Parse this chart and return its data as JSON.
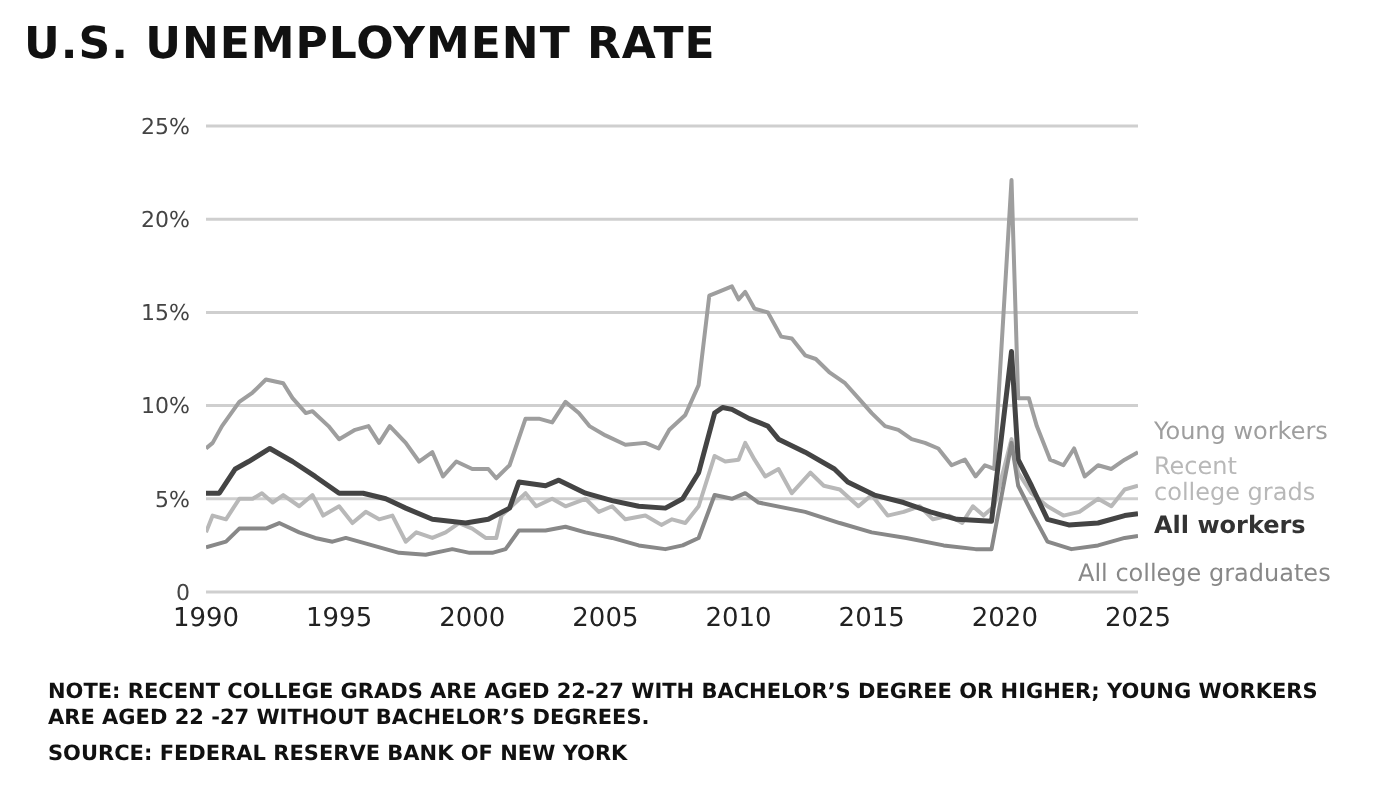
{
  "chart_data": {
    "type": "line",
    "title": "U.S. UNEMPLOYMENT RATE",
    "xlim": [
      1990,
      2025
    ],
    "xticks": [
      1990,
      1995,
      2000,
      2005,
      2010,
      2015,
      2020,
      2025
    ],
    "ylim": [
      0,
      25
    ],
    "yticks": [
      0,
      {
        "value": 5,
        "label": "5%"
      },
      {
        "value": 10,
        "label": "10%"
      },
      {
        "value": 15,
        "label": "15%"
      },
      {
        "value": 20,
        "label": "20%"
      },
      {
        "value": 25,
        "label": "25%"
      }
    ],
    "grid": "y",
    "series": [
      {
        "name": "Young workers",
        "color": "#9e9e9e",
        "x": [
          1990,
          1990.25,
          1990.6,
          1991.25,
          1991.75,
          1992.25,
          1992.9,
          1993.25,
          1993.75,
          1994,
          1994.6,
          1995,
          1995.6,
          1996.1,
          1996.5,
          1996.9,
          1997.5,
          1998,
          1998.5,
          1998.9,
          1999.4,
          2000,
          2000.6,
          2000.9,
          2001.4,
          2002,
          2002.5,
          2003,
          2003.5,
          2004,
          2004.4,
          2005,
          2005.75,
          2006.5,
          2007,
          2007.4,
          2008,
          2008.5,
          2008.9,
          2009.25,
          2009.75,
          2010,
          2010.25,
          2010.6,
          2011.1,
          2011.6,
          2012,
          2012.5,
          2012.9,
          2013.4,
          2014,
          2014.5,
          2015,
          2015.5,
          2016,
          2016.5,
          2017,
          2017.5,
          2018,
          2018.5,
          2018.9,
          2019.25,
          2019.6,
          2020.25,
          2020.5,
          2020.9,
          2021.2,
          2021.7,
          2022.2,
          2022.6,
          2023,
          2023.5,
          2024,
          2024.5,
          2025
        ],
        "values": [
          7.7,
          8.0,
          8.9,
          10.2,
          10.7,
          11.4,
          11.2,
          10.4,
          9.6,
          9.7,
          8.9,
          8.2,
          8.7,
          8.9,
          8.0,
          8.9,
          8.0,
          7.0,
          7.5,
          6.2,
          7.0,
          6.6,
          6.6,
          6.1,
          6.8,
          9.3,
          9.3,
          9.1,
          10.2,
          9.6,
          8.9,
          8.4,
          7.9,
          8.0,
          7.7,
          8.7,
          9.5,
          11.1,
          15.9,
          16.1,
          16.4,
          15.7,
          16.1,
          15.2,
          15.0,
          13.7,
          13.6,
          12.7,
          12.5,
          11.8,
          11.2,
          10.4,
          9.6,
          8.9,
          8.7,
          8.2,
          8.0,
          7.7,
          6.8,
          7.1,
          6.2,
          6.8,
          6.6,
          22.1,
          10.4,
          10.4,
          8.9,
          7.1,
          6.8,
          7.7,
          6.2,
          6.8,
          6.6,
          7.1,
          7.5
        ]
      },
      {
        "name": "Recent college grads",
        "color": "#b8b8b8",
        "x": [
          1990,
          1990.25,
          1990.75,
          1991.25,
          1991.75,
          1992.1,
          1992.5,
          1992.9,
          1993.5,
          1994,
          1994.4,
          1995,
          1995.5,
          1996,
          1996.5,
          1997,
          1997.5,
          1997.9,
          1998.5,
          1999,
          1999.5,
          2000,
          2000.5,
          2000.9,
          2001.1,
          2002,
          2002.4,
          2003,
          2003.5,
          2004.25,
          2004.75,
          2005.25,
          2005.75,
          2006.5,
          2007.1,
          2007.5,
          2008,
          2008.5,
          2009.1,
          2009.5,
          2010,
          2010.25,
          2010.6,
          2011,
          2011.5,
          2012,
          2012.7,
          2013.2,
          2013.8,
          2014.5,
          2015,
          2015.6,
          2016.2,
          2016.8,
          2017.3,
          2017.9,
          2018.4,
          2018.8,
          2019.2,
          2019.6,
          2020.25,
          2020.5,
          2021,
          2021.6,
          2022.2,
          2022.8,
          2023.5,
          2024,
          2024.5,
          2025
        ],
        "values": [
          3.2,
          4.1,
          3.9,
          5.0,
          5.0,
          5.3,
          4.8,
          5.2,
          4.6,
          5.2,
          4.1,
          4.6,
          3.7,
          4.3,
          3.9,
          4.1,
          2.7,
          3.2,
          2.9,
          3.2,
          3.7,
          3.4,
          2.9,
          2.9,
          4.1,
          5.3,
          4.6,
          5.0,
          4.6,
          5.0,
          4.3,
          4.6,
          3.9,
          4.1,
          3.6,
          3.9,
          3.7,
          4.6,
          7.3,
          7.0,
          7.1,
          8.0,
          7.1,
          6.2,
          6.6,
          5.3,
          6.4,
          5.7,
          5.5,
          4.6,
          5.2,
          4.1,
          4.3,
          4.6,
          3.9,
          4.1,
          3.7,
          4.6,
          4.1,
          4.6,
          8.2,
          6.4,
          5.3,
          4.6,
          4.1,
          4.3,
          5.0,
          4.6,
          5.5,
          5.7
        ]
      },
      {
        "name": "All workers",
        "color": "#444444",
        "x": [
          1990,
          1990.5,
          1991.1,
          1991.6,
          1992.4,
          1993.25,
          1994.1,
          1995,
          1995.9,
          1996.75,
          1997.5,
          1998.5,
          1999.75,
          2000.6,
          2001.4,
          2001.75,
          2002.75,
          2003.25,
          2004.25,
          2005.25,
          2006.25,
          2007.25,
          2007.9,
          2008.5,
          2009.1,
          2009.4,
          2009.75,
          2010.4,
          2011.1,
          2011.5,
          2012.5,
          2013.6,
          2014.1,
          2015.1,
          2016.2,
          2017.2,
          2018.2,
          2019.5,
          2020.25,
          2020.5,
          2021,
          2021.6,
          2022.4,
          2023.5,
          2024.5,
          2025
        ],
        "values": [
          5.3,
          5.3,
          6.6,
          7.0,
          7.7,
          7.0,
          6.2,
          5.3,
          5.3,
          5.0,
          4.5,
          3.9,
          3.7,
          3.9,
          4.5,
          5.9,
          5.7,
          6.0,
          5.3,
          4.9,
          4.6,
          4.5,
          5.0,
          6.4,
          9.6,
          9.9,
          9.8,
          9.3,
          8.9,
          8.2,
          7.5,
          6.6,
          5.9,
          5.2,
          4.8,
          4.3,
          3.9,
          3.8,
          12.9,
          7.1,
          5.7,
          3.9,
          3.6,
          3.7,
          4.1,
          4.2
        ]
      },
      {
        "name": "All college graduates",
        "color": "#888888",
        "x": [
          1990,
          1990.75,
          1991.25,
          1992.25,
          1992.75,
          1993.5,
          1994.1,
          1994.75,
          1995.25,
          1996.25,
          1997.25,
          1998.25,
          1999.25,
          1999.9,
          2000.75,
          2001.25,
          2001.75,
          2002.75,
          2003.5,
          2004.25,
          2005.25,
          2006.25,
          2007.25,
          2007.9,
          2008.5,
          2009.1,
          2009.75,
          2010.25,
          2010.75,
          2012.5,
          2013.8,
          2015,
          2016.3,
          2017.7,
          2018.9,
          2019.5,
          2020.25,
          2020.5,
          2021,
          2021.6,
          2022.5,
          2023.5,
          2024.5,
          2025
        ],
        "values": [
          2.4,
          2.7,
          3.4,
          3.4,
          3.7,
          3.2,
          2.9,
          2.7,
          2.9,
          2.5,
          2.1,
          2.0,
          2.3,
          2.1,
          2.1,
          2.3,
          3.3,
          3.3,
          3.5,
          3.2,
          2.9,
          2.5,
          2.3,
          2.5,
          2.9,
          5.2,
          5.0,
          5.3,
          4.8,
          4.3,
          3.7,
          3.2,
          2.9,
          2.5,
          2.3,
          2.3,
          8.0,
          5.7,
          4.3,
          2.7,
          2.3,
          2.5,
          2.9,
          3.0
        ]
      }
    ],
    "annotations": [
      "NOTE: RECENT COLLEGE GRADS ARE AGED 22-27 WITH BACHELOR’S DEGREE OR HIGHER; YOUNG WORKERS ARE AGED 22 -27 WITHOUT BACHELOR’S DEGREES.",
      "SOURCE: FEDERAL RESERVE BANK OF NEW YORK"
    ]
  }
}
